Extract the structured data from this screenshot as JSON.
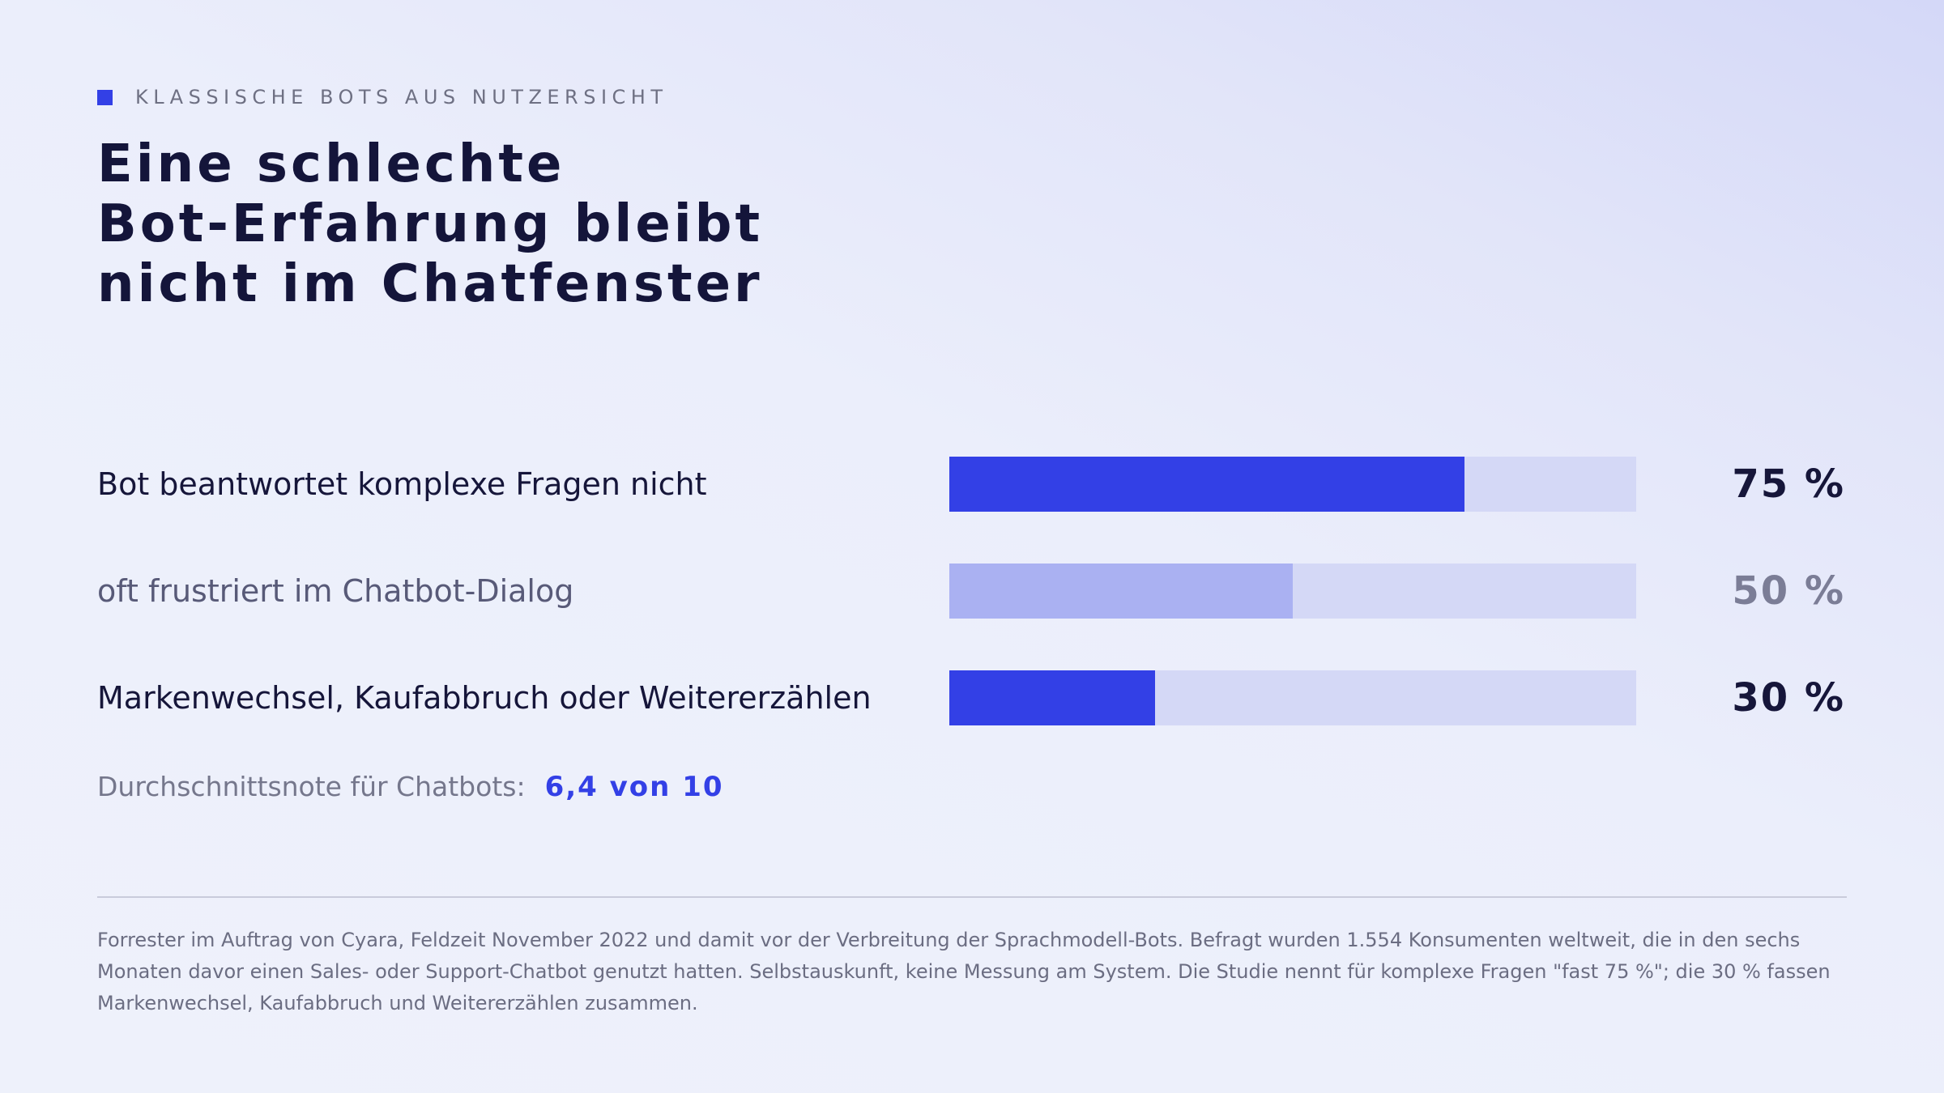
{
  "eyebrow": "KLASSISCHE BOTS AUS NUTZERSICHT",
  "title_lines": [
    "Eine schlechte",
    "Bot-Erfahrung bleibt",
    "nicht im Chatfenster"
  ],
  "chart_data": {
    "type": "bar",
    "orientation": "horizontal",
    "categories": [
      "Bot beantwortet komplexe Fragen nicht",
      "oft frustriert im Chatbot-Dialog",
      "Markenwechsel, Kaufabbruch oder Weitererzählen"
    ],
    "values": [
      75,
      50,
      30
    ],
    "value_labels": [
      "75 %",
      "50 %",
      "30 %"
    ],
    "xlim": [
      0,
      100
    ],
    "unit": "%",
    "emphasis": [
      "primary",
      "secondary",
      "primary"
    ],
    "colors": {
      "primary_fill": "#3340e6",
      "secondary_fill": "#aab1f2",
      "track": "#d4d8f6"
    },
    "grid": false,
    "legend": "none"
  },
  "average": {
    "label": "Durchschnittsnote für Chatbots:",
    "value": "6,4 von 10"
  },
  "footnote": "Forrester im Auftrag von Cyara, Feldzeit November 2022 und damit vor der Verbreitung der Sprachmodell-Bots. Befragt wurden 1.554 Konsumenten weltweit, die in den sechs Monaten davor einen Sales- oder Support-Chatbot genutzt hatten. Selbstauskunft, keine Messung am System. Die Studie nennt für komplexe Fragen \"fast 75 %\"; die 30 % fassen Markenwechsel, Kaufabbruch und Weitererzählen zusammen.",
  "colors": {
    "accent": "#3340e6",
    "text_dark": "#16163a",
    "text_muted": "#75778c"
  }
}
